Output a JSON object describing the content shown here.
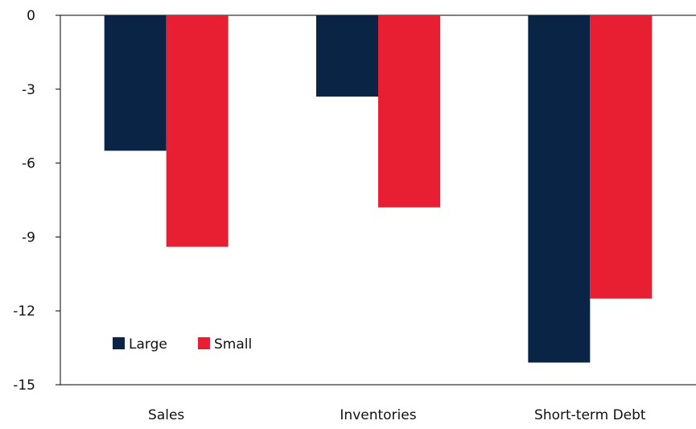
{
  "chart_data": {
    "type": "bar",
    "categories": [
      "Sales",
      "Inventories",
      "Short-term Debt"
    ],
    "series": [
      {
        "name": "Large",
        "color": "#0a2446",
        "values": [
          -5.5,
          -3.3,
          -14.1
        ]
      },
      {
        "name": "Small",
        "color": "#e81e33",
        "values": [
          -9.4,
          -7.8,
          -11.5
        ]
      }
    ],
    "ylim": [
      -15,
      0
    ],
    "yticks": [
      0,
      -3,
      -6,
      -9,
      -12,
      -15
    ],
    "ytick_labels": [
      "0",
      "-3",
      "-6",
      "-9",
      "-12",
      "-15"
    ],
    "grid": false,
    "legend_position": "bottom-left"
  }
}
